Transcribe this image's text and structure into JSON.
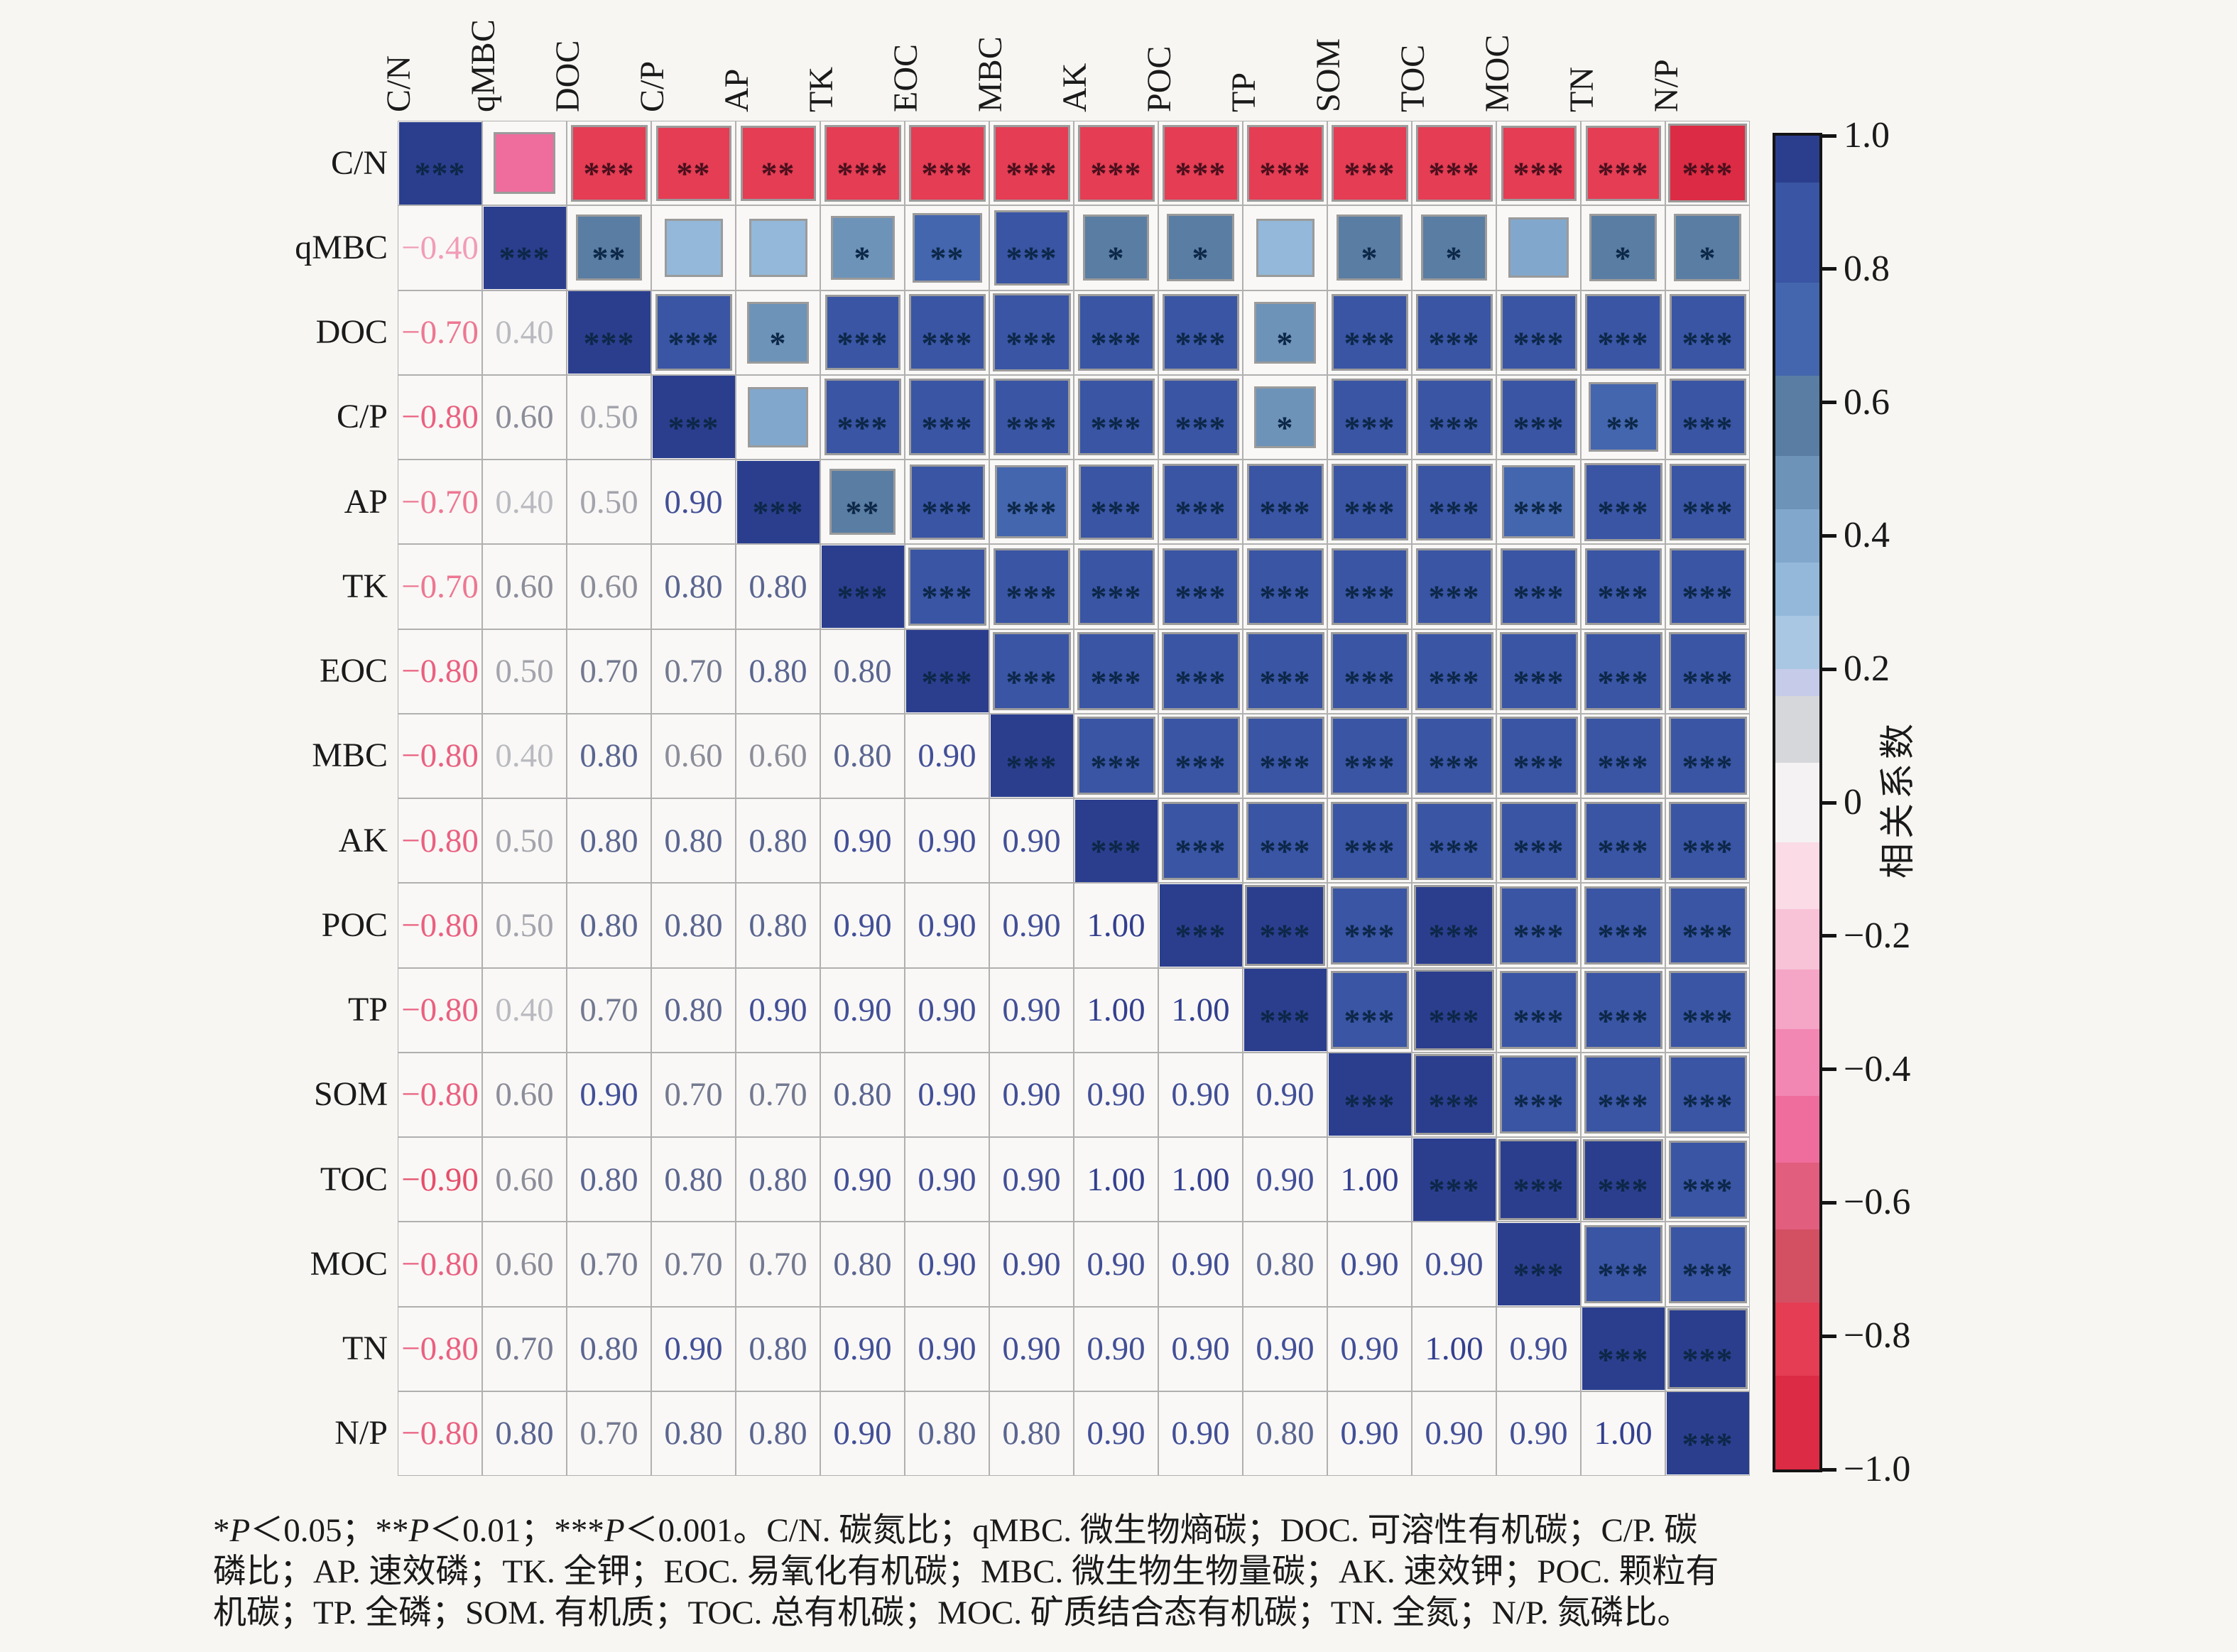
{
  "chart_data": {
    "type": "heatmap",
    "title": "",
    "variables": [
      "C/N",
      "qMBC",
      "DOC",
      "C/P",
      "AP",
      "TK",
      "EOC",
      "MBC",
      "AK",
      "POC",
      "TP",
      "SOM",
      "TOC",
      "MOC",
      "TN",
      "N/P"
    ],
    "lower_triangle_values": [
      [],
      [
        -0.4
      ],
      [
        -0.7,
        0.4
      ],
      [
        -0.8,
        0.6,
        0.5
      ],
      [
        -0.7,
        0.4,
        0.5,
        0.9
      ],
      [
        -0.7,
        0.6,
        0.6,
        0.8,
        0.8
      ],
      [
        -0.8,
        0.5,
        0.7,
        0.7,
        0.8,
        0.8
      ],
      [
        -0.8,
        0.4,
        0.8,
        0.6,
        0.6,
        0.8,
        0.9
      ],
      [
        -0.8,
        0.5,
        0.8,
        0.8,
        0.8,
        0.9,
        0.9,
        0.9
      ],
      [
        -0.8,
        0.5,
        0.8,
        0.8,
        0.8,
        0.9,
        0.9,
        0.9,
        1.0
      ],
      [
        -0.8,
        0.4,
        0.7,
        0.8,
        0.9,
        0.9,
        0.9,
        0.9,
        1.0,
        1.0
      ],
      [
        -0.8,
        0.6,
        0.9,
        0.7,
        0.7,
        0.8,
        0.9,
        0.9,
        0.9,
        0.9,
        0.9
      ],
      [
        -0.9,
        0.6,
        0.8,
        0.8,
        0.8,
        0.9,
        0.9,
        0.9,
        1.0,
        1.0,
        0.9,
        1.0
      ],
      [
        -0.8,
        0.6,
        0.7,
        0.7,
        0.7,
        0.8,
        0.9,
        0.9,
        0.9,
        0.9,
        0.8,
        0.9,
        0.9
      ],
      [
        -0.8,
        0.7,
        0.8,
        0.9,
        0.8,
        0.9,
        0.9,
        0.9,
        0.9,
        0.9,
        0.9,
        0.9,
        1.0,
        0.9
      ],
      [
        -0.8,
        0.8,
        0.7,
        0.8,
        0.8,
        0.9,
        0.8,
        0.8,
        0.9,
        0.9,
        0.8,
        0.9,
        0.9,
        0.9,
        1.0
      ]
    ],
    "upper_triangle_values": [
      [
        -0.45,
        -0.85,
        -0.8,
        -0.8,
        -0.85,
        -0.85,
        -0.85,
        -0.85,
        -0.85,
        -0.85,
        -0.85,
        -0.85,
        -0.8,
        -0.8,
        -0.9
      ],
      [
        0.55,
        0.35,
        0.35,
        0.5,
        0.65,
        0.8,
        0.55,
        0.6,
        0.35,
        0.55,
        0.55,
        0.4,
        0.6,
        0.6
      ],
      [
        0.85,
        0.45,
        0.8,
        0.85,
        0.88,
        0.85,
        0.85,
        0.45,
        0.85,
        0.85,
        0.85,
        0.85,
        0.85
      ],
      [
        0.4,
        0.85,
        0.85,
        0.85,
        0.85,
        0.85,
        0.45,
        0.85,
        0.85,
        0.85,
        0.65,
        0.85
      ],
      [
        0.55,
        0.8,
        0.75,
        0.8,
        0.85,
        0.85,
        0.85,
        0.85,
        0.75,
        0.88,
        0.85
      ],
      [
        0.88,
        0.85,
        0.85,
        0.85,
        0.85,
        0.85,
        0.85,
        0.85,
        0.85,
        0.85
      ],
      [
        0.88,
        0.88,
        0.88,
        0.88,
        0.88,
        0.88,
        0.88,
        0.88,
        0.88
      ],
      [
        0.88,
        0.88,
        0.88,
        0.88,
        0.88,
        0.88,
        0.88,
        0.88
      ],
      [
        0.88,
        0.88,
        0.88,
        0.88,
        0.88,
        0.88,
        0.88
      ],
      [
        0.95,
        0.88,
        0.95,
        0.88,
        0.88,
        0.88
      ],
      [
        0.88,
        0.95,
        0.88,
        0.88,
        0.88
      ],
      [
        0.95,
        0.88,
        0.88,
        0.88
      ],
      [
        0.95,
        0.95,
        0.88
      ],
      [
        0.88,
        0.88
      ],
      [
        0.95
      ],
      []
    ],
    "upper_triangle_stars": [
      [
        "",
        "***",
        "**",
        "**",
        "***",
        "***",
        "***",
        "***",
        "***",
        "***",
        "***",
        "***",
        "***",
        "***",
        "***"
      ],
      [
        "**",
        "",
        "",
        "*",
        "**",
        "***",
        "*",
        "*",
        "",
        "*",
        "*",
        "",
        "*",
        "*"
      ],
      [
        "***",
        "*",
        "***",
        "***",
        "***",
        "***",
        "***",
        "*",
        "***",
        "***",
        "***",
        "***",
        "***"
      ],
      [
        "",
        "***",
        "***",
        "***",
        "***",
        "***",
        "*",
        "***",
        "***",
        "***",
        "**",
        "***"
      ],
      [
        "**",
        "***",
        "***",
        "***",
        "***",
        "***",
        "***",
        "***",
        "***",
        "***",
        "***"
      ],
      [
        "***",
        "***",
        "***",
        "***",
        "***",
        "***",
        "***",
        "***",
        "***",
        "***"
      ],
      [
        "***",
        "***",
        "***",
        "***",
        "***",
        "***",
        "***",
        "***",
        "***"
      ],
      [
        "***",
        "***",
        "***",
        "***",
        "***",
        "***",
        "***",
        "***"
      ],
      [
        "***",
        "***",
        "***",
        "***",
        "***",
        "***",
        "***"
      ],
      [
        "***",
        "***",
        "***",
        "***",
        "***",
        "***"
      ],
      [
        "***",
        "***",
        "***",
        "***",
        "***"
      ],
      [
        "***",
        "***",
        "***",
        "***"
      ],
      [
        "***",
        "***",
        "***"
      ],
      [
        "***",
        "***"
      ],
      [
        "***"
      ],
      []
    ],
    "diagonal_value": 1.0,
    "diagonal_stars": "***",
    "colorbar": {
      "label": "相关系数",
      "ticks": [
        1.0,
        0.8,
        0.6,
        0.4,
        0.2,
        0,
        -0.2,
        -0.4,
        -0.6,
        -0.8,
        -1.0
      ],
      "range": [
        -1.0,
        1.0
      ]
    },
    "palette": [
      [
        0.93,
        "#2b3e8e"
      ],
      [
        0.78,
        "#3a55a4"
      ],
      [
        0.64,
        "#4466ae"
      ],
      [
        0.52,
        "#5a7da3"
      ],
      [
        0.44,
        "#6e93b8"
      ],
      [
        0.36,
        "#82a7cc"
      ],
      [
        0.28,
        "#93b8d9"
      ],
      [
        0.2,
        "#a9c6e2"
      ],
      [
        0.16,
        "#c5cbe9"
      ],
      [
        0.06,
        "#d6d7da"
      ],
      [
        -0.06,
        "#f4f2f2"
      ],
      [
        -0.16,
        "#fadbe6"
      ],
      [
        -0.25,
        "#f8c2d7"
      ],
      [
        -0.34,
        "#f5a5c5"
      ],
      [
        -0.44,
        "#f287b3"
      ],
      [
        -0.54,
        "#ee6d9d"
      ],
      [
        -0.64,
        "#e25e7e"
      ],
      [
        -0.75,
        "#d35063"
      ],
      [
        -0.86,
        "#e43d54"
      ],
      [
        -1.01,
        "#dc2b44"
      ]
    ],
    "value_text_colors": {
      "-0.9": "#e64e6a",
      "-0.8": "#ea6080",
      "-0.7": "#ed7792",
      "-0.4": "#f19cb8",
      "0.4": "#b9bac0",
      "0.5": "#a3a4ac",
      "0.6": "#8b8d99",
      "0.7": "#737990",
      "0.8": "#5a6590",
      "0.9": "#424f97",
      "1": "#333f8f"
    },
    "colors": {
      "background": "#f7f6f3",
      "grid_line": "#b0b0b0",
      "cell_bg": "#f9f8f6",
      "square_border": "#9b9b9b",
      "colorbar_border": "#141414",
      "star_positive": "#0c2747",
      "star_negative": "#4a0f1c",
      "text": "#1a1a1a"
    },
    "caption_lines": [
      "*P＜0.05；**P＜0.01；***P＜0.001。C/N. 碳氮比；qMBC. 微生物熵碳；DOC. 可溶性有机碳；C/P. 碳",
      "磷比；AP. 速效磷；TK. 全钾；EOC. 易氧化有机碳；MBC. 微生物生物量碳；AK. 速效钾；POC. 颗粒有",
      "机碳；TP. 全磷；SOM. 有机质；TOC. 总有机碳；MOC. 矿质结合态有机碳；TN. 全氮；N/P. 氮磷比。"
    ]
  }
}
